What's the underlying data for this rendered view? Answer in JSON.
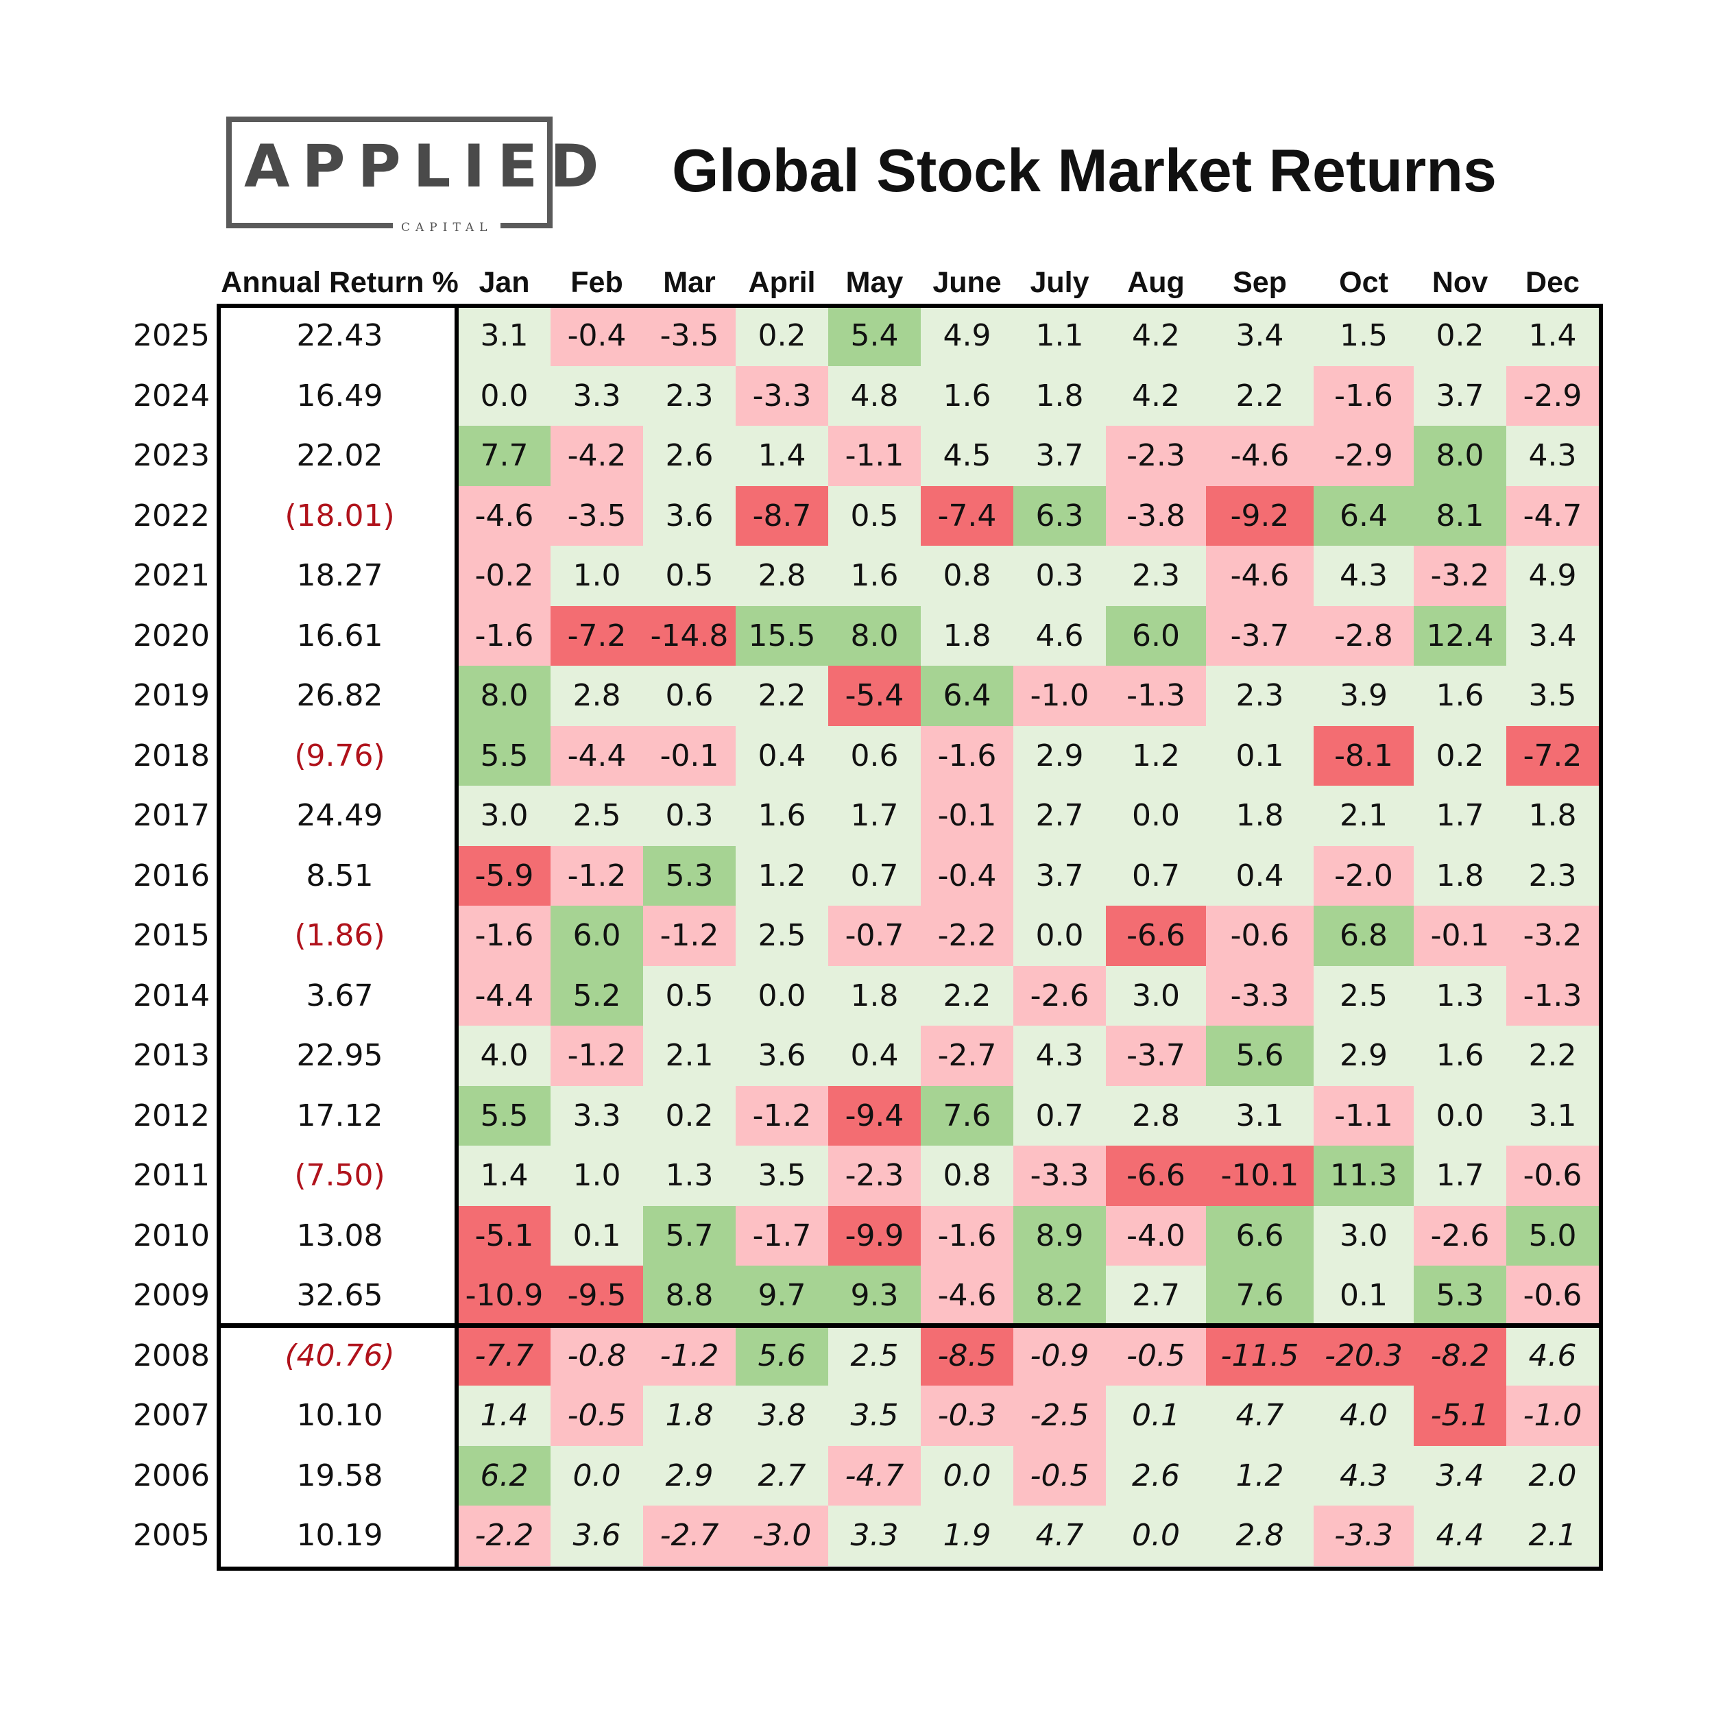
{
  "logo": {
    "main": "APPLIED",
    "sub": "CAPITAL"
  },
  "colors": {
    "light_green": "#e4f1dc",
    "green": "#a6d393",
    "light_red": "#fdc0c4",
    "red": "#f36d72",
    "negative_text": "#b0121b"
  },
  "chart_data": {
    "type": "table",
    "title": "Global Stock Market Returns",
    "columns": [
      "Annual Return %",
      "Jan",
      "Feb",
      "Mar",
      "April",
      "May",
      "June",
      "July",
      "Aug",
      "Sep",
      "Oct",
      "Nov",
      "Dec"
    ],
    "rows": [
      {
        "year": "2025",
        "annual": "22.43",
        "months": [
          "3.1",
          "-0.4",
          "-3.5",
          "0.2",
          "5.4",
          "4.9",
          "1.1",
          "4.2",
          "3.4",
          "1.5",
          "0.2",
          "1.4"
        ]
      },
      {
        "year": "2024",
        "annual": "16.49",
        "months": [
          "0.0",
          "3.3",
          "2.3",
          "-3.3",
          "4.8",
          "1.6",
          "1.8",
          "4.2",
          "2.2",
          "-1.6",
          "3.7",
          "-2.9"
        ]
      },
      {
        "year": "2023",
        "annual": "22.02",
        "months": [
          "7.7",
          "-4.2",
          "2.6",
          "1.4",
          "-1.1",
          "4.5",
          "3.7",
          "-2.3",
          "-4.6",
          "-2.9",
          "8.0",
          "4.3"
        ]
      },
      {
        "year": "2022",
        "annual": "(18.01)",
        "months": [
          "-4.6",
          "-3.5",
          "3.6",
          "-8.7",
          "0.5",
          "-7.4",
          "6.3",
          "-3.8",
          "-9.2",
          "6.4",
          "8.1",
          "-4.7"
        ]
      },
      {
        "year": "2021",
        "annual": "18.27",
        "months": [
          "-0.2",
          "1.0",
          "0.5",
          "2.8",
          "1.6",
          "0.8",
          "0.3",
          "2.3",
          "-4.6",
          "4.3",
          "-3.2",
          "4.9"
        ]
      },
      {
        "year": "2020",
        "annual": "16.61",
        "months": [
          "-1.6",
          "-7.2",
          "-14.8",
          "15.5",
          "8.0",
          "1.8",
          "4.6",
          "6.0",
          "-3.7",
          "-2.8",
          "12.4",
          "3.4"
        ]
      },
      {
        "year": "2019",
        "annual": "26.82",
        "months": [
          "8.0",
          "2.8",
          "0.6",
          "2.2",
          "-5.4",
          "6.4",
          "-1.0",
          "-1.3",
          "2.3",
          "3.9",
          "1.6",
          "3.5"
        ]
      },
      {
        "year": "2018",
        "annual": "(9.76)",
        "months": [
          "5.5",
          "-4.4",
          "-0.1",
          "0.4",
          "0.6",
          "-1.6",
          "2.9",
          "1.2",
          "0.1",
          "-8.1",
          "0.2",
          "-7.2"
        ]
      },
      {
        "year": "2017",
        "annual": "24.49",
        "months": [
          "3.0",
          "2.5",
          "0.3",
          "1.6",
          "1.7",
          "-0.1",
          "2.7",
          "0.0",
          "1.8",
          "2.1",
          "1.7",
          "1.8"
        ]
      },
      {
        "year": "2016",
        "annual": "8.51",
        "months": [
          "-5.9",
          "-1.2",
          "5.3",
          "1.2",
          "0.7",
          "-0.4",
          "3.7",
          "0.7",
          "0.4",
          "-2.0",
          "1.8",
          "2.3"
        ]
      },
      {
        "year": "2015",
        "annual": "(1.86)",
        "months": [
          "-1.6",
          "6.0",
          "-1.2",
          "2.5",
          "-0.7",
          "-2.2",
          "0.0",
          "-6.6",
          "-0.6",
          "6.8",
          "-0.1",
          "-3.2"
        ]
      },
      {
        "year": "2014",
        "annual": "3.67",
        "months": [
          "-4.4",
          "5.2",
          "0.5",
          "0.0",
          "1.8",
          "2.2",
          "-2.6",
          "3.0",
          "-3.3",
          "2.5",
          "1.3",
          "-1.3"
        ]
      },
      {
        "year": "2013",
        "annual": "22.95",
        "months": [
          "4.0",
          "-1.2",
          "2.1",
          "3.6",
          "0.4",
          "-2.7",
          "4.3",
          "-3.7",
          "5.6",
          "2.9",
          "1.6",
          "2.2"
        ]
      },
      {
        "year": "2012",
        "annual": "17.12",
        "months": [
          "5.5",
          "3.3",
          "0.2",
          "-1.2",
          "-9.4",
          "7.6",
          "0.7",
          "2.8",
          "3.1",
          "-1.1",
          "0.0",
          "3.1"
        ]
      },
      {
        "year": "2011",
        "annual": "(7.50)",
        "months": [
          "1.4",
          "1.0",
          "1.3",
          "3.5",
          "-2.3",
          "0.8",
          "-3.3",
          "-6.6",
          "-10.1",
          "11.3",
          "1.7",
          "-0.6"
        ]
      },
      {
        "year": "2010",
        "annual": "13.08",
        "months": [
          "-5.1",
          "0.1",
          "5.7",
          "-1.7",
          "-9.9",
          "-1.6",
          "8.9",
          "-4.0",
          "6.6",
          "3.0",
          "-2.6",
          "5.0"
        ]
      },
      {
        "year": "2009",
        "annual": "32.65",
        "months": [
          "-10.9",
          "-9.5",
          "8.8",
          "9.7",
          "9.3",
          "-4.6",
          "8.2",
          "2.7",
          "7.6",
          "0.1",
          "5.3",
          "-0.6"
        ]
      },
      {
        "year": "2008",
        "annual": "(40.76)",
        "months": [
          "-7.7",
          "-0.8",
          "-1.2",
          "5.6",
          "2.5",
          "-8.5",
          "-0.9",
          "-0.5",
          "-11.5",
          "-20.3",
          "-8.2",
          "4.6"
        ]
      },
      {
        "year": "2007",
        "annual": "10.10",
        "months": [
          "1.4",
          "-0.5",
          "1.8",
          "3.8",
          "3.5",
          "-0.3",
          "-2.5",
          "0.1",
          "4.7",
          "4.0",
          "-5.1",
          "-1.0"
        ]
      },
      {
        "year": "2006",
        "annual": "19.58",
        "months": [
          "6.2",
          "0.0",
          "2.9",
          "2.7",
          "-4.7",
          "0.0",
          "-0.5",
          "2.6",
          "1.2",
          "4.3",
          "3.4",
          "2.0"
        ]
      },
      {
        "year": "2005",
        "annual": "10.19",
        "months": [
          "-2.2",
          "3.6",
          "-2.7",
          "-3.0",
          "3.3",
          "1.9",
          "4.7",
          "0.0",
          "2.8",
          "-3.3",
          "4.4",
          "2.1"
        ]
      }
    ]
  }
}
